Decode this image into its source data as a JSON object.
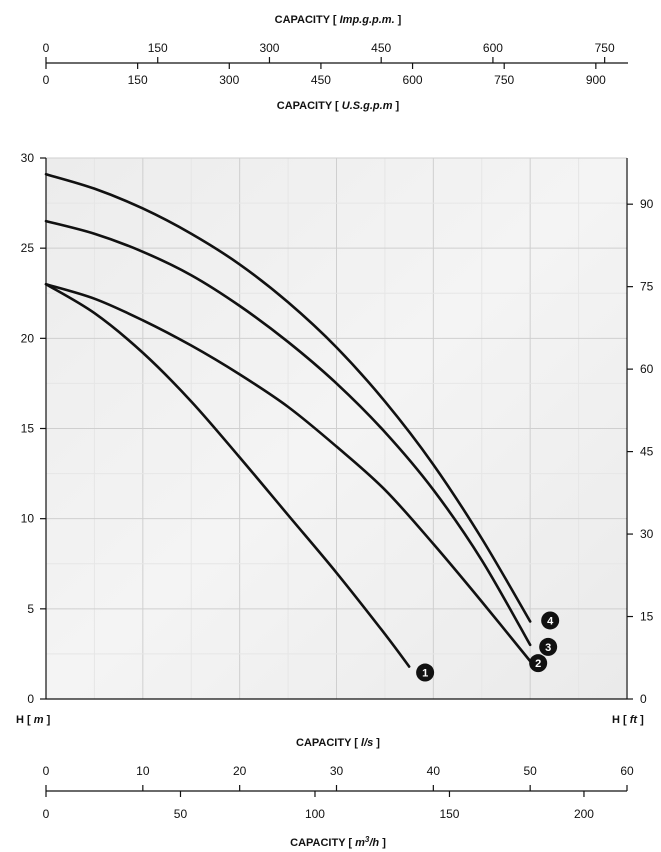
{
  "chart_data": {
    "type": "line",
    "axes": {
      "top_imp": {
        "title": "CAPACITY",
        "unit": "Imp.g.p.m.",
        "ticks": [
          0,
          150,
          300,
          450,
          600,
          750
        ],
        "range": [
          0,
          780
        ]
      },
      "top_us": {
        "title": "CAPACITY",
        "unit": "U.S.g.p.m",
        "ticks": [
          0,
          150,
          300,
          450,
          600,
          750,
          900
        ],
        "range": [
          0,
          951
        ]
      },
      "left_h_m": {
        "label": "H",
        "unit": "m",
        "ticks": [
          0,
          5,
          10,
          15,
          20,
          25,
          30
        ],
        "range": [
          0,
          30
        ]
      },
      "right_h_ft": {
        "label": "H",
        "unit": "ft",
        "ticks": [
          0,
          15,
          30,
          45,
          60,
          75,
          90
        ],
        "range": [
          0,
          98.4
        ]
      },
      "bottom_ls": {
        "title": "CAPACITY",
        "unit": "l/s",
        "ticks": [
          0,
          10,
          20,
          30,
          40,
          50,
          60
        ],
        "range": [
          0,
          60
        ]
      },
      "bottom_m3h": {
        "title": "CAPACITY",
        "unit_base": "m",
        "unit_sup": "3",
        "unit_tail": "/h",
        "ticks": [
          0,
          50,
          100,
          150,
          200
        ],
        "range": [
          0,
          216
        ]
      }
    },
    "x_unit": "l/s",
    "y_unit": "m",
    "grid": true,
    "series": [
      {
        "marker": "1",
        "x": [
          0,
          5,
          10,
          15,
          20,
          25,
          30,
          35,
          37.5
        ],
        "y": [
          23.0,
          21.4,
          19.2,
          16.5,
          13.4,
          10.2,
          7.0,
          3.6,
          1.8
        ]
      },
      {
        "marker": "2",
        "x": [
          0,
          5,
          10,
          15,
          20,
          25,
          30,
          35,
          40,
          45,
          50
        ],
        "y": [
          23.0,
          22.2,
          21.0,
          19.6,
          18.0,
          16.2,
          14.0,
          11.6,
          8.6,
          5.4,
          2.1
        ]
      },
      {
        "marker": "3",
        "x": [
          0,
          5,
          10,
          15,
          20,
          25,
          30,
          35,
          40,
          45,
          50
        ],
        "y": [
          26.5,
          25.8,
          24.8,
          23.5,
          21.8,
          19.8,
          17.5,
          14.8,
          11.6,
          7.7,
          3.0
        ]
      },
      {
        "marker": "4",
        "x": [
          0,
          5,
          10,
          15,
          20,
          25,
          30,
          35,
          40,
          45,
          50
        ],
        "y": [
          29.1,
          28.3,
          27.2,
          25.8,
          24.1,
          22.0,
          19.5,
          16.5,
          13.0,
          8.9,
          4.3
        ]
      }
    ]
  }
}
